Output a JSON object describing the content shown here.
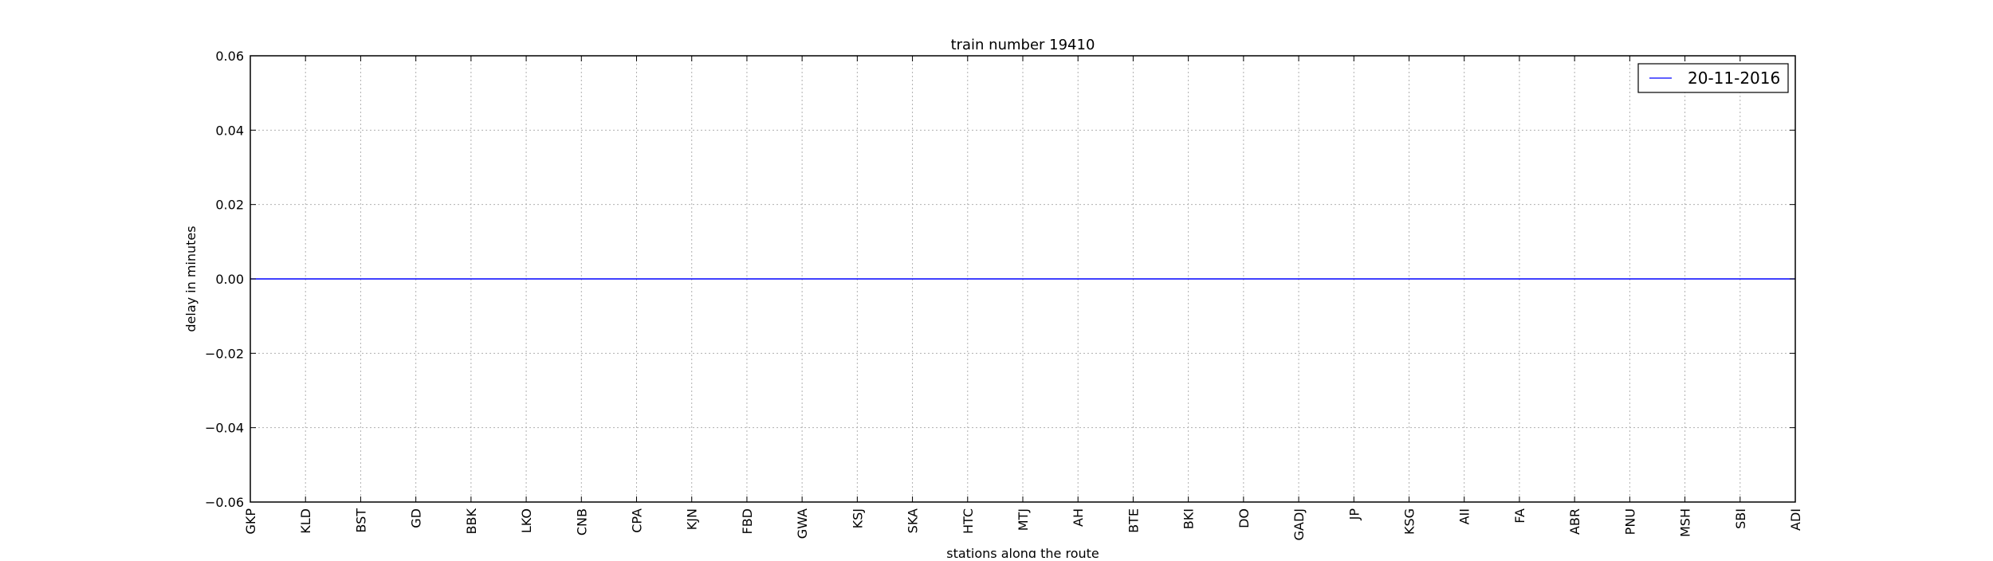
{
  "chart_data": {
    "type": "line",
    "title": "train number 19410",
    "xlabel": "stations along the route",
    "ylabel": "delay in minutes",
    "categories": [
      "GKP",
      "KLD",
      "BST",
      "GD",
      "BBK",
      "LKO",
      "CNB",
      "CPA",
      "KJN",
      "FBD",
      "GWA",
      "KSJ",
      "SKA",
      "HTC",
      "MTJ",
      "AH",
      "BTE",
      "BKI",
      "DO",
      "GADJ",
      "JP",
      "KSG",
      "AII",
      "FA",
      "ABR",
      "PNU",
      "MSH",
      "SBI",
      "ADI"
    ],
    "yticks": [
      "−0.06",
      "−0.04",
      "−0.02",
      "0.00",
      "0.02",
      "0.04",
      "0.06"
    ],
    "ytick_values": [
      -0.06,
      -0.04,
      -0.02,
      0.0,
      0.02,
      0.04,
      0.06
    ],
    "ylim": [
      -0.06,
      0.06
    ],
    "grid": true,
    "legend_position": "top-right",
    "series": [
      {
        "name": "20-11-2016",
        "color": "#0000ff",
        "values": [
          0,
          0,
          0,
          0,
          0,
          0,
          0,
          0,
          0,
          0,
          0,
          0,
          0,
          0,
          0,
          0,
          0,
          0,
          0,
          0,
          0,
          0,
          0,
          0,
          0,
          0,
          0,
          0,
          0
        ]
      }
    ]
  }
}
